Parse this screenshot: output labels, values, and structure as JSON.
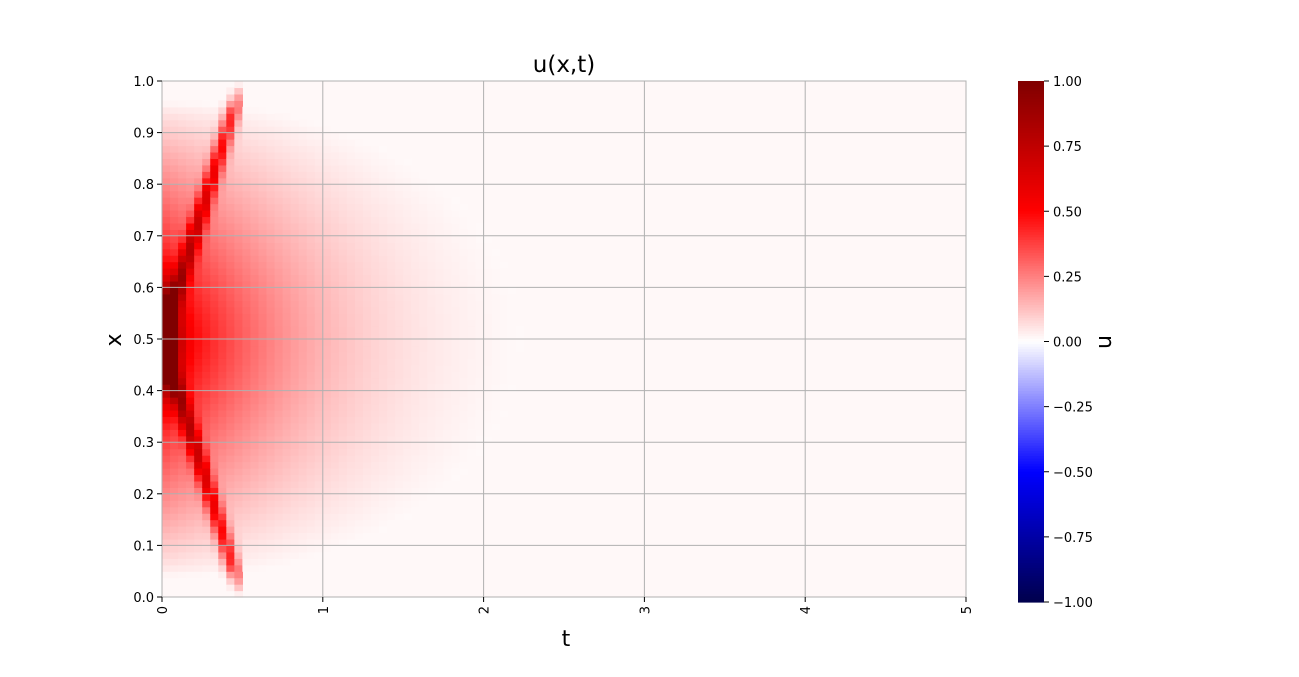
{
  "chart_data": {
    "type": "heatmap",
    "title": "u(x,t)",
    "xlabel": "t",
    "ylabel": "x",
    "colorbar_label": "u",
    "colormap": "seismic",
    "xlim": [
      0,
      5
    ],
    "ylim": [
      0,
      1
    ],
    "xticks": [
      0,
      1,
      2,
      3,
      4,
      5
    ],
    "xtick_labels": [
      "0",
      "1",
      "2",
      "3",
      "4",
      "5"
    ],
    "yticks": [
      0,
      0.1,
      0.2,
      0.3,
      0.4,
      0.5,
      0.6,
      0.7,
      0.8,
      0.9,
      1.0
    ],
    "ytick_labels": [
      "0.0",
      "0.1",
      "0.2",
      "0.3",
      "0.4",
      "0.5",
      "0.6",
      "0.7",
      "0.8",
      "0.9",
      "1.0"
    ],
    "clim": [
      -1,
      1
    ],
    "cbar_ticks": [
      -1,
      -0.75,
      -0.5,
      -0.25,
      0,
      0.25,
      0.5,
      0.75,
      1
    ],
    "cbar_tick_labels": [
      "−1.00",
      "−0.75",
      "−0.50",
      "−0.25",
      "0.00",
      "0.25",
      "0.50",
      "0.75",
      "1.00"
    ],
    "grid": true,
    "field": {
      "peak_value_at_t0": 1.0,
      "peak_x": 0.5,
      "wave_amplitude": 0.5,
      "wave_speed": 1.0,
      "bulk_amplitude": 0.4,
      "decay_time_scale": 1.0,
      "max_t_nonzero": 2.7
    }
  },
  "colors": {
    "positive_max": "#800000",
    "positive_mid": "#ff0000",
    "zero": "#ffffff",
    "negative_mid": "#0000ff",
    "negative_max": "#000080",
    "grid": "#b0b0b0"
  }
}
